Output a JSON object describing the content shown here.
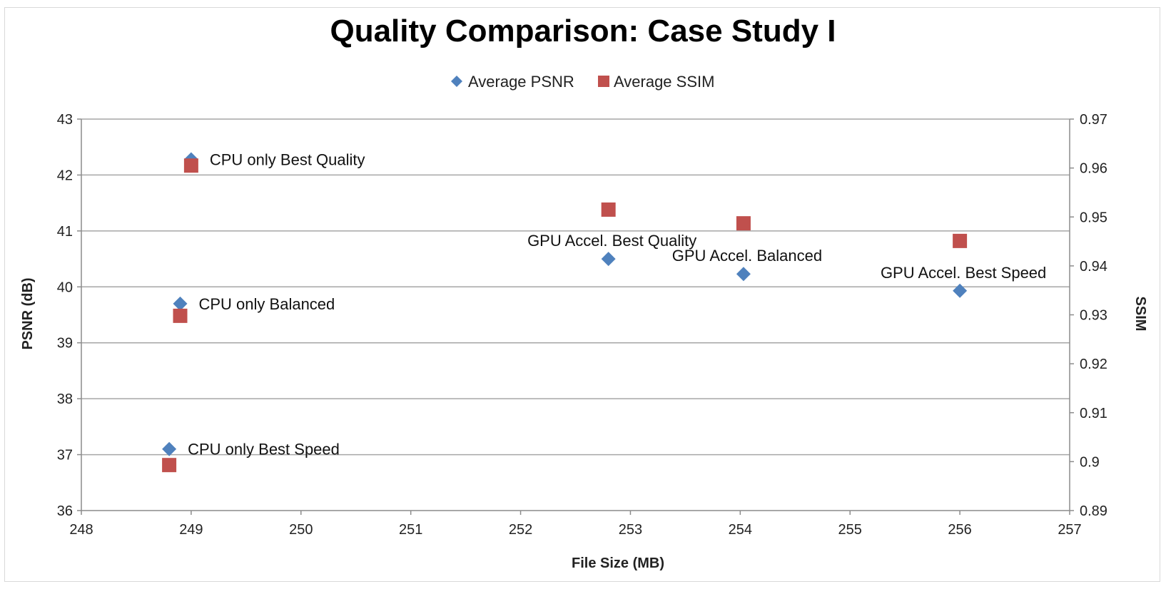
{
  "chart_data": {
    "type": "scatter",
    "title": "Quality Comparison: Case Study I",
    "xlabel": "File Size (MB)",
    "ylabel": "PSNR (dB)",
    "y2label": "SSIM",
    "xlim": [
      248,
      257
    ],
    "ylim": [
      36,
      43
    ],
    "y2lim": [
      0.89,
      0.97
    ],
    "x_ticks": [
      "248",
      "249",
      "250",
      "251",
      "252",
      "253",
      "254",
      "255",
      "256",
      "257"
    ],
    "y_ticks": [
      "36",
      "37",
      "38",
      "39",
      "40",
      "41",
      "42",
      "43"
    ],
    "y2_ticks": [
      "0.89",
      "0.9",
      "0.91",
      "0.92",
      "0.93",
      "0.94",
      "0.95",
      "0.96",
      "0.97"
    ],
    "grid": true,
    "legend_position": "top-center",
    "series": [
      {
        "name": "Average PSNR",
        "marker": "diamond",
        "color": "#4f81bd",
        "axis": "left",
        "points": [
          {
            "x": 249.0,
            "y": 42.28
          },
          {
            "x": 248.9,
            "y": 39.7
          },
          {
            "x": 248.8,
            "y": 37.1
          },
          {
            "x": 252.8,
            "y": 40.5
          },
          {
            "x": 254.03,
            "y": 40.23
          },
          {
            "x": 256.0,
            "y": 39.93
          }
        ]
      },
      {
        "name": "Average SSIM",
        "marker": "square",
        "color": "#c0504d",
        "axis": "right",
        "points": [
          {
            "x": 249.0,
            "y": 0.9605
          },
          {
            "x": 248.9,
            "y": 0.9298
          },
          {
            "x": 248.8,
            "y": 0.8993
          },
          {
            "x": 252.8,
            "y": 0.9515
          },
          {
            "x": 254.03,
            "y": 0.9487
          },
          {
            "x": 256.0,
            "y": 0.9451
          }
        ]
      }
    ],
    "annotations": [
      {
        "text": "CPU only Best Quality",
        "x": 249.0,
        "y": 42.28,
        "placement": "right"
      },
      {
        "text": "CPU only Balanced",
        "x": 248.9,
        "y": 39.7,
        "placement": "right"
      },
      {
        "text": "CPU only Best Speed",
        "x": 248.8,
        "y": 37.1,
        "placement": "right"
      },
      {
        "text": "GPU Accel. Best Quality",
        "x": 252.8,
        "y": 40.5,
        "placement": "above"
      },
      {
        "text": "GPU Accel. Balanced",
        "x": 254.03,
        "y": 40.23,
        "placement": "above"
      },
      {
        "text": "GPU Accel. Best Speed",
        "x": 256.0,
        "y": 39.93,
        "placement": "above"
      }
    ]
  }
}
